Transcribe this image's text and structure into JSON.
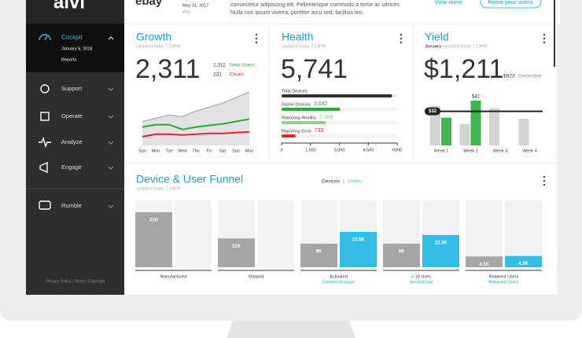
{
  "sidebar": {
    "brand": "alvi",
    "active": {
      "label": "Cockpit",
      "date": "January 5, 2018",
      "sub": "Reports"
    },
    "items": [
      "Support",
      "Operate",
      "Analyze",
      "Engage",
      "Rumble"
    ],
    "footer": "Privacy Policy | Terms | Copyright"
  },
  "header": {
    "logo": "ebay",
    "date": "May 31, 2017",
    "source": "ebay",
    "lines": [
      "consectetur adipiscing elit. Pellentesque commodo a tortor ac ultrices.",
      "Nulla non ipsum viverra, porttitor arcu sed, facilisis leo."
    ],
    "link": "View more",
    "button": "Know your users"
  },
  "chart_data": [
    {
      "type": "line",
      "title": "Growth",
      "subtitle": "Updated today 7:23PM",
      "kpi": "2,311",
      "categories": [
        "Sun",
        "Mon",
        "Tue",
        "Wed",
        "Thu",
        "Fri",
        "Sat",
        "Sun",
        "Mon"
      ],
      "series": [
        {
          "color": "#b3b3b3",
          "values": [
            30,
            34,
            38,
            36,
            43,
            48,
            53,
            60,
            67
          ]
        },
        {
          "name": "New Users",
          "total": "1,311",
          "color": "#2ea83a",
          "values": [
            23,
            26,
            26,
            20,
            23,
            25,
            27,
            30,
            33
          ]
        },
        {
          "name": "Churn",
          "total": "231",
          "color": "#e0262b",
          "values": [
            11,
            14,
            14,
            13,
            14,
            15,
            15,
            16,
            17
          ]
        }
      ]
    },
    {
      "type": "barh",
      "title": "Health",
      "subtitle": "Updated today 7:23PM",
      "kpi": "5,741",
      "categories": [
        "Total Devices",
        "Online Devices",
        "Reporting Healthy",
        "Reporting Error"
      ],
      "values": [
        5741,
        3042,
        2309,
        733
      ],
      "value_labels": [
        null,
        "3,042",
        "2,309",
        "733"
      ],
      "colors": [
        "#333333",
        "#2ea83a",
        "#8fd18a",
        "#e0262b"
      ],
      "xlim": [
        0,
        6000
      ],
      "xticks": [
        0,
        {
          "value": 1500,
          "label": "1,500"
        },
        {
          "value": 3000,
          "label": "3,000"
        },
        {
          "value": 4500,
          "label": "4,500"
        },
        6000
      ]
    },
    {
      "type": "bar",
      "title": "Yield",
      "period": "January",
      "subtitle": "Updated today 7:23PM",
      "kpi": "$1,211",
      "comparison": {
        "value": "$923",
        "label": "December"
      },
      "categories": [
        "Week 1",
        "Week 2",
        "Week 3",
        "Week 4"
      ],
      "series": [
        {
          "color": "#d2d2d2",
          "values": [
            37,
            20,
            35,
            25
          ]
        },
        {
          "color": "#3db54a",
          "values": [
            26,
            42,
            null,
            null
          ],
          "value_labels": [
            null,
            "$42",
            null,
            null
          ]
        }
      ],
      "threshold": {
        "value": 32,
        "label": "$32"
      }
    },
    {
      "type": "funnel",
      "title": "Device & User Funnel",
      "subtitle": "Updated today 7:23PM",
      "categories": [
        "Manufactured",
        "Shipped",
        "Activated",
        "> 10 Uses",
        "Retained Users"
      ],
      "sublabels": [
        null,
        null,
        "Created Account",
        "Second Use",
        "Retained Users"
      ],
      "series": [
        {
          "name": "Devices",
          "color": "#a5a5a5",
          "values": [
            21000,
            11000,
            9000,
            9000,
            4100
          ],
          "value_labels": [
            "21K",
            "11K",
            "9K",
            "9K",
            "4.1K"
          ]
        },
        {
          "name": "Users",
          "color": "#36bde6",
          "values": [
            null,
            null,
            13500,
            12300,
            4300
          ],
          "value_labels": [
            null,
            null,
            "13.5K",
            "12.3K",
            "4.3K"
          ]
        }
      ]
    }
  ]
}
